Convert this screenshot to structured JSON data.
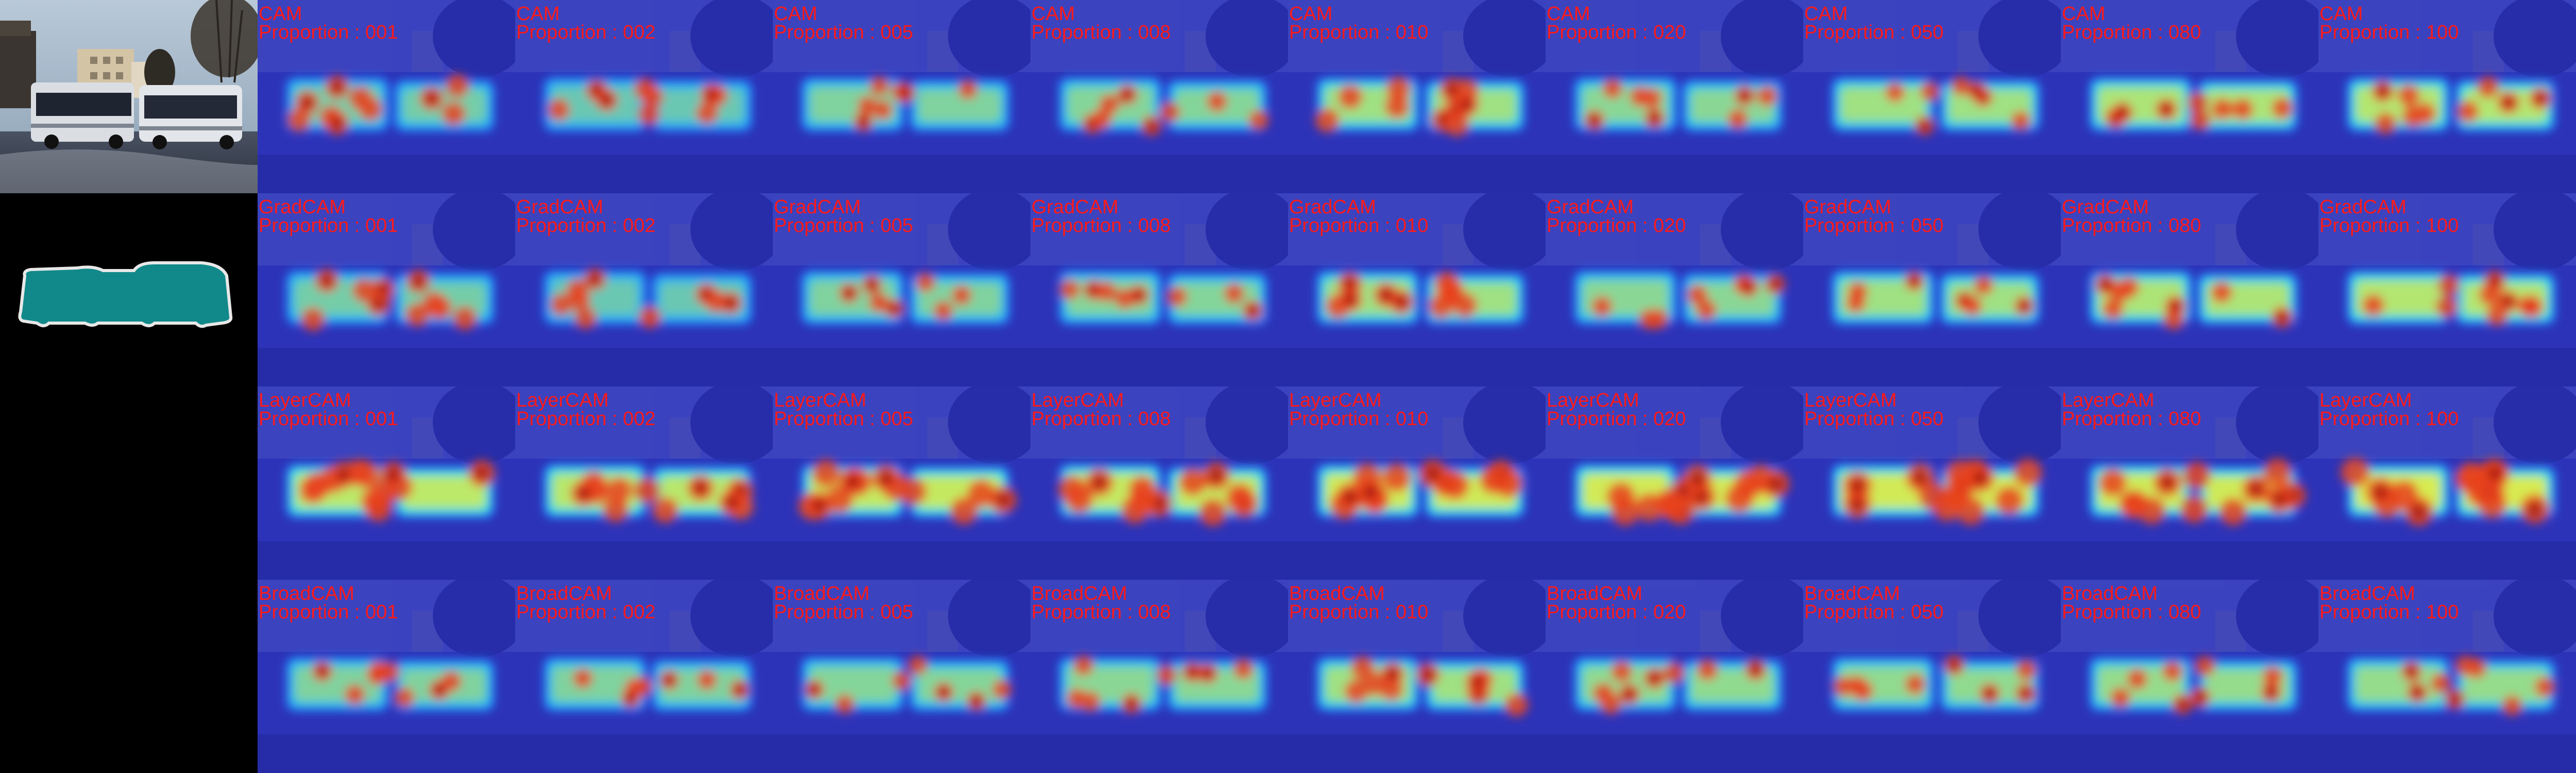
{
  "figure": {
    "source_photo": {
      "description_icon": "bus-photo",
      "palette": {
        "sky": "#9fb3c6",
        "building": "#c9b79c",
        "ground": "#3a4252",
        "bus_body": "#d7dbe0",
        "bus_window": "#1f2530",
        "tree": "#2b2620"
      }
    },
    "ground_truth_mask": {
      "fill_color": "#11898a",
      "outline_color": "#e8e8e8"
    },
    "rows": [
      {
        "method": "CAM",
        "cells": [
          {
            "method_label": "CAM",
            "proportion_label": "Proportion : 001",
            "activation_level": 0.35,
            "hot_ratio": 0.55
          },
          {
            "method_label": "CAM",
            "proportion_label": "Proportion : 002",
            "activation_level": 0.3,
            "hot_ratio": 0.45
          },
          {
            "method_label": "CAM",
            "proportion_label": "Proportion : 005",
            "activation_level": 0.4,
            "hot_ratio": 0.3
          },
          {
            "method_label": "CAM",
            "proportion_label": "Proportion : 008",
            "activation_level": 0.42,
            "hot_ratio": 0.35
          },
          {
            "method_label": "CAM",
            "proportion_label": "Proportion : 010",
            "activation_level": 0.55,
            "hot_ratio": 0.6
          },
          {
            "method_label": "CAM",
            "proportion_label": "Proportion : 020",
            "activation_level": 0.45,
            "hot_ratio": 0.35
          },
          {
            "method_label": "CAM",
            "proportion_label": "Proportion : 050",
            "activation_level": 0.55,
            "hot_ratio": 0.3
          },
          {
            "method_label": "CAM",
            "proportion_label": "Proportion : 080",
            "activation_level": 0.62,
            "hot_ratio": 0.4
          },
          {
            "method_label": "CAM",
            "proportion_label": "Proportion : 100",
            "activation_level": 0.65,
            "hot_ratio": 0.45
          }
        ]
      },
      {
        "method": "GradCAM",
        "cells": [
          {
            "method_label": "GradCAM",
            "proportion_label": "Proportion : 001",
            "activation_level": 0.35,
            "hot_ratio": 0.55
          },
          {
            "method_label": "GradCAM",
            "proportion_label": "Proportion : 002",
            "activation_level": 0.3,
            "hot_ratio": 0.45
          },
          {
            "method_label": "GradCAM",
            "proportion_label": "Proportion : 005",
            "activation_level": 0.4,
            "hot_ratio": 0.3
          },
          {
            "method_label": "GradCAM",
            "proportion_label": "Proportion : 008",
            "activation_level": 0.42,
            "hot_ratio": 0.35
          },
          {
            "method_label": "GradCAM",
            "proportion_label": "Proportion : 010",
            "activation_level": 0.55,
            "hot_ratio": 0.6
          },
          {
            "method_label": "GradCAM",
            "proportion_label": "Proportion : 020",
            "activation_level": 0.45,
            "hot_ratio": 0.35
          },
          {
            "method_label": "GradCAM",
            "proportion_label": "Proportion : 050",
            "activation_level": 0.55,
            "hot_ratio": 0.3
          },
          {
            "method_label": "GradCAM",
            "proportion_label": "Proportion : 080",
            "activation_level": 0.62,
            "hot_ratio": 0.4
          },
          {
            "method_label": "GradCAM",
            "proportion_label": "Proportion : 100",
            "activation_level": 0.65,
            "hot_ratio": 0.45
          }
        ]
      },
      {
        "method": "LayerCAM",
        "cells": [
          {
            "method_label": "LayerCAM",
            "proportion_label": "Proportion : 001",
            "activation_level": 0.7,
            "hot_ratio": 0.75
          },
          {
            "method_label": "LayerCAM",
            "proportion_label": "Proportion : 002",
            "activation_level": 0.68,
            "hot_ratio": 0.7
          },
          {
            "method_label": "LayerCAM",
            "proportion_label": "Proportion : 005",
            "activation_level": 0.75,
            "hot_ratio": 0.8
          },
          {
            "method_label": "LayerCAM",
            "proportion_label": "Proportion : 008",
            "activation_level": 0.75,
            "hot_ratio": 0.8
          },
          {
            "method_label": "LayerCAM",
            "proportion_label": "Proportion : 010",
            "activation_level": 0.8,
            "hot_ratio": 0.85
          },
          {
            "method_label": "LayerCAM",
            "proportion_label": "Proportion : 020",
            "activation_level": 0.82,
            "hot_ratio": 0.85
          },
          {
            "method_label": "LayerCAM",
            "proportion_label": "Proportion : 050",
            "activation_level": 0.82,
            "hot_ratio": 0.85
          },
          {
            "method_label": "LayerCAM",
            "proportion_label": "Proportion : 080",
            "activation_level": 0.8,
            "hot_ratio": 0.8
          },
          {
            "method_label": "LayerCAM",
            "proportion_label": "Proportion : 100",
            "activation_level": 0.85,
            "hot_ratio": 0.9
          }
        ]
      },
      {
        "method": "BroadCAM",
        "cells": [
          {
            "method_label": "BroadCAM",
            "proportion_label": "Proportion : 001",
            "activation_level": 0.4,
            "hot_ratio": 0.35
          },
          {
            "method_label": "BroadCAM",
            "proportion_label": "Proportion : 002",
            "activation_level": 0.4,
            "hot_ratio": 0.3
          },
          {
            "method_label": "BroadCAM",
            "proportion_label": "Proportion : 005",
            "activation_level": 0.42,
            "hot_ratio": 0.3
          },
          {
            "method_label": "BroadCAM",
            "proportion_label": "Proportion : 008",
            "activation_level": 0.45,
            "hot_ratio": 0.35
          },
          {
            "method_label": "BroadCAM",
            "proportion_label": "Proportion : 010",
            "activation_level": 0.55,
            "hot_ratio": 0.55
          },
          {
            "method_label": "BroadCAM",
            "proportion_label": "Proportion : 020",
            "activation_level": 0.48,
            "hot_ratio": 0.4
          },
          {
            "method_label": "BroadCAM",
            "proportion_label": "Proportion : 050",
            "activation_level": 0.48,
            "hot_ratio": 0.35
          },
          {
            "method_label": "BroadCAM",
            "proportion_label": "Proportion : 080",
            "activation_level": 0.5,
            "hot_ratio": 0.35
          },
          {
            "method_label": "BroadCAM",
            "proportion_label": "Proportion : 100",
            "activation_level": 0.5,
            "hot_ratio": 0.35
          }
        ]
      }
    ],
    "colors": {
      "label_text": "#ff1a1a",
      "heat_background": "#2d33b8",
      "heat_cool": "#1f7dff",
      "heat_mid": "#3fe0d6",
      "heat_warm": "#f2ec3a",
      "heat_hot": "#e8421f",
      "heat_peak": "#a5100d"
    }
  }
}
